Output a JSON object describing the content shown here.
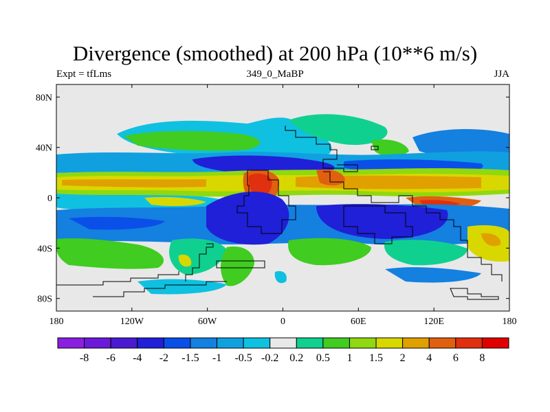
{
  "chart_data": {
    "type": "heatmap",
    "title": "Divergence (smoothed) at 200 hPa (10**6 m/s)",
    "subtitle_left": "Expt = tfLms",
    "subtitle_center": "349_0_MaBP",
    "subtitle_right": "JJA",
    "xlabel": "",
    "ylabel": "",
    "xlim": [
      -180,
      180
    ],
    "ylim": [
      -90,
      90
    ],
    "x_ticks": [
      {
        "value": -180,
        "label": "180"
      },
      {
        "value": -120,
        "label": "120W"
      },
      {
        "value": -60,
        "label": "60W"
      },
      {
        "value": 0,
        "label": "0"
      },
      {
        "value": 60,
        "label": "60E"
      },
      {
        "value": 120,
        "label": "120E"
      },
      {
        "value": 180,
        "label": "180"
      }
    ],
    "y_ticks": [
      {
        "value": 80,
        "label": "80N"
      },
      {
        "value": 40,
        "label": "40N"
      },
      {
        "value": 0,
        "label": "0"
      },
      {
        "value": -40,
        "label": "40S"
      },
      {
        "value": -80,
        "label": "80S"
      }
    ],
    "colorbar": {
      "levels": [
        "-8",
        "-6",
        "-4",
        "-2",
        "-1.5",
        "-1",
        "-0.5",
        "-0.2",
        "0.2",
        "0.5",
        "1",
        "1.5",
        "2",
        "4",
        "6",
        "8"
      ],
      "colors": [
        "#8a1fe0",
        "#6a1ad8",
        "#4a1ad0",
        "#2020d8",
        "#0a50e8",
        "#1480e0",
        "#10a0e0",
        "#10c0e0",
        "#e8e8e8",
        "#10d090",
        "#40cc20",
        "#90d810",
        "#d8d800",
        "#e0a000",
        "#e06010",
        "#e03010",
        "#e00000"
      ]
    },
    "features": [
      {
        "name": "Equatorial divergence band",
        "lon": [
          -180,
          180
        ],
        "lat": [
          2,
          16
        ],
        "value": 1.5
      },
      {
        "name": "North Africa divergence maximum",
        "lon": [
          -25,
          -5
        ],
        "lat": [
          0,
          16
        ],
        "value": 4
      },
      {
        "name": "East Africa divergence maximum",
        "lon": [
          30,
          50
        ],
        "lat": [
          8,
          16
        ],
        "value": 4
      },
      {
        "name": "Indian Ocean divergence maximum",
        "lon": [
          100,
          125
        ],
        "lat": [
          -10,
          -2
        ],
        "value": 4
      },
      {
        "name": "Southern tropical convergence band",
        "lon": [
          -160,
          160
        ],
        "lat": [
          -40,
          -12
        ],
        "value": -2
      },
      {
        "name": "Atlantic convergence maximum",
        "lon": [
          -30,
          10
        ],
        "lat": [
          -30,
          -8
        ],
        "value": -4
      },
      {
        "name": "Northern subtropical convergence band",
        "lon": [
          -150,
          170
        ],
        "lat": [
          20,
          30
        ],
        "value": -1.5
      }
    ]
  }
}
